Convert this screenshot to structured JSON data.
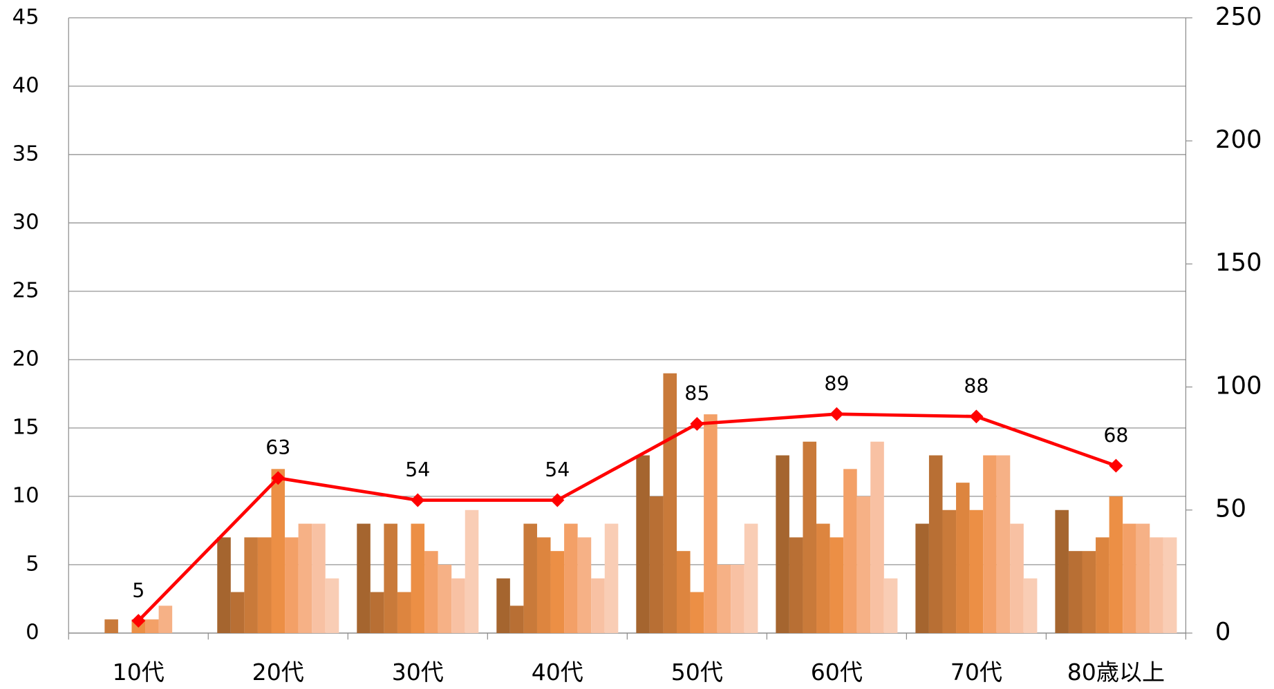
{
  "chart_data": {
    "type": "bar",
    "categories": [
      "10代",
      "20代",
      "30代",
      "40代",
      "50代",
      "60代",
      "70代",
      "80歳以上"
    ],
    "ylim": [
      0,
      45
    ],
    "yticks": [
      0,
      5,
      10,
      15,
      20,
      25,
      30,
      35,
      40,
      45
    ],
    "y2lim": [
      0,
      250
    ],
    "y2ticks": [
      0,
      50,
      100,
      150,
      200,
      250
    ],
    "grid": true,
    "series": [
      {
        "color": "#a5652f",
        "values": [
          0,
          7,
          8,
          4,
          13,
          13,
          8,
          9
        ]
      },
      {
        "color": "#b86f34",
        "values": [
          0,
          3,
          3,
          2,
          10,
          7,
          13,
          6
        ]
      },
      {
        "color": "#c97a3a",
        "values": [
          1,
          7,
          8,
          8,
          19,
          14,
          9,
          6
        ]
      },
      {
        "color": "#dd853f",
        "values": [
          0,
          7,
          3,
          7,
          6,
          8,
          11,
          7
        ]
      },
      {
        "color": "#ec8f45",
        "values": [
          1,
          12,
          8,
          6,
          3,
          7,
          9,
          10
        ]
      },
      {
        "color": "#f3a067",
        "values": [
          1,
          7,
          6,
          8,
          16,
          12,
          13,
          8
        ]
      },
      {
        "color": "#f6b186",
        "values": [
          2,
          8,
          5,
          7,
          5,
          10,
          13,
          8
        ]
      },
      {
        "color": "#f8c1a3",
        "values": [
          0,
          8,
          4,
          4,
          5,
          14,
          8,
          7
        ]
      },
      {
        "color": "#f9cdb5",
        "values": [
          0,
          4,
          9,
          8,
          8,
          4,
          4,
          7
        ]
      },
      {
        "type": "line",
        "axis": "y2",
        "color": "#ff0000",
        "values": [
          5,
          63,
          54,
          54,
          85,
          89,
          88,
          68
        ]
      }
    ]
  }
}
